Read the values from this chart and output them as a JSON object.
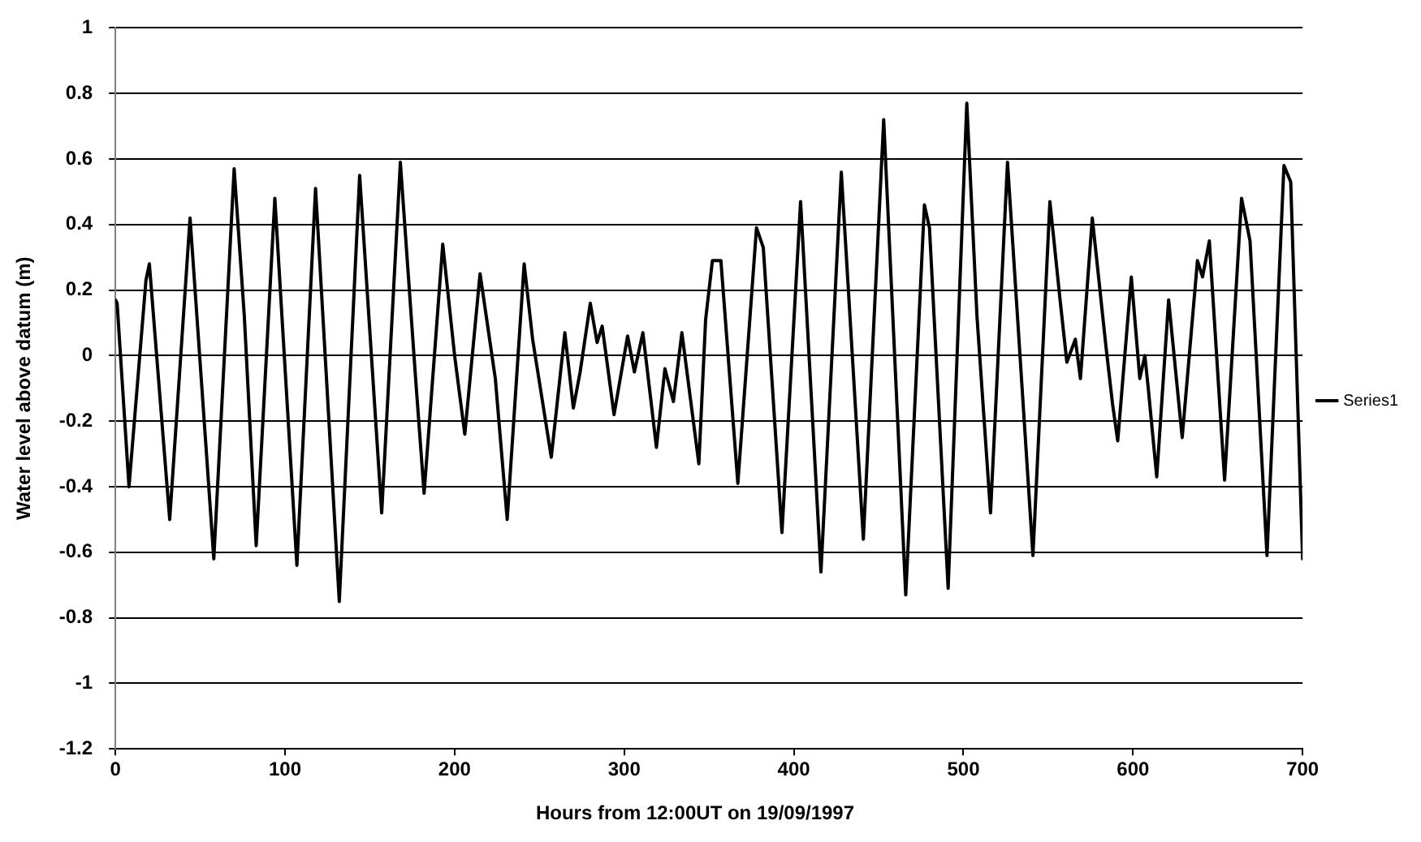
{
  "chart_data": {
    "type": "line",
    "xlabel": "Hours from 12:00UT on 19/09/1997",
    "ylabel": "Water level above datum (m)",
    "x": [
      0,
      1,
      8,
      18,
      20,
      32,
      44,
      58,
      70,
      76,
      83,
      94,
      107,
      118,
      132,
      144,
      157,
      168,
      177,
      182,
      193,
      200,
      206,
      215,
      224,
      231,
      241,
      246,
      257,
      265,
      270,
      274,
      280,
      284,
      287,
      294,
      302,
      306,
      311,
      319,
      324,
      329,
      334,
      344,
      348,
      352,
      357,
      367,
      378,
      382,
      393,
      404,
      416,
      428,
      441,
      453,
      466,
      477,
      480,
      491,
      502,
      508,
      516,
      526,
      541,
      551,
      557,
      561,
      566,
      569,
      576,
      584,
      588,
      591,
      599,
      604,
      607,
      609,
      614,
      621,
      629,
      638,
      641,
      645,
      654,
      664,
      669,
      679,
      689,
      693,
      700
    ],
    "series": [
      {
        "name": "Series1",
        "color": "#000000",
        "values": [
          0.17,
          0.16,
          -0.4,
          0.23,
          0.28,
          -0.5,
          0.42,
          -0.62,
          0.57,
          0.12,
          -0.58,
          0.48,
          -0.64,
          0.51,
          -0.75,
          0.55,
          -0.48,
          0.59,
          -0.07,
          -0.42,
          0.34,
          0,
          -0.24,
          0.25,
          -0.07,
          -0.5,
          0.28,
          0.05,
          -0.31,
          0.07,
          -0.16,
          -0.05,
          0.16,
          0.04,
          0.09,
          -0.18,
          0.06,
          -0.05,
          0.07,
          -0.28,
          -0.04,
          -0.14,
          0.07,
          -0.33,
          0.11,
          0.29,
          0.29,
          -0.39,
          0.39,
          0.33,
          -0.54,
          0.47,
          -0.66,
          0.56,
          -0.56,
          0.72,
          -0.73,
          0.46,
          0.39,
          -0.71,
          0.77,
          0.12,
          -0.48,
          0.59,
          -0.61,
          0.47,
          0.17,
          -0.02,
          0.05,
          -0.07,
          0.42,
          0.03,
          -0.15,
          -0.26,
          0.24,
          -0.07,
          0,
          -0.1,
          -0.37,
          0.17,
          -0.25,
          0.29,
          0.24,
          0.35,
          -0.38,
          0.48,
          0.35,
          -0.61,
          0.58,
          0.53,
          -0.62
        ]
      }
    ],
    "xlim": [
      0,
      700
    ],
    "xticks": [
      0,
      100,
      200,
      300,
      400,
      500,
      600,
      700
    ],
    "ylim": [
      -1.2,
      1
    ],
    "yticks": [
      -1.2,
      -1,
      -0.8,
      -0.6,
      -0.4,
      -0.2,
      0,
      0.2,
      0.4,
      0.6,
      0.8,
      1
    ],
    "grid": "y",
    "legend": "right",
    "marker": "none",
    "line_style": "solid"
  }
}
